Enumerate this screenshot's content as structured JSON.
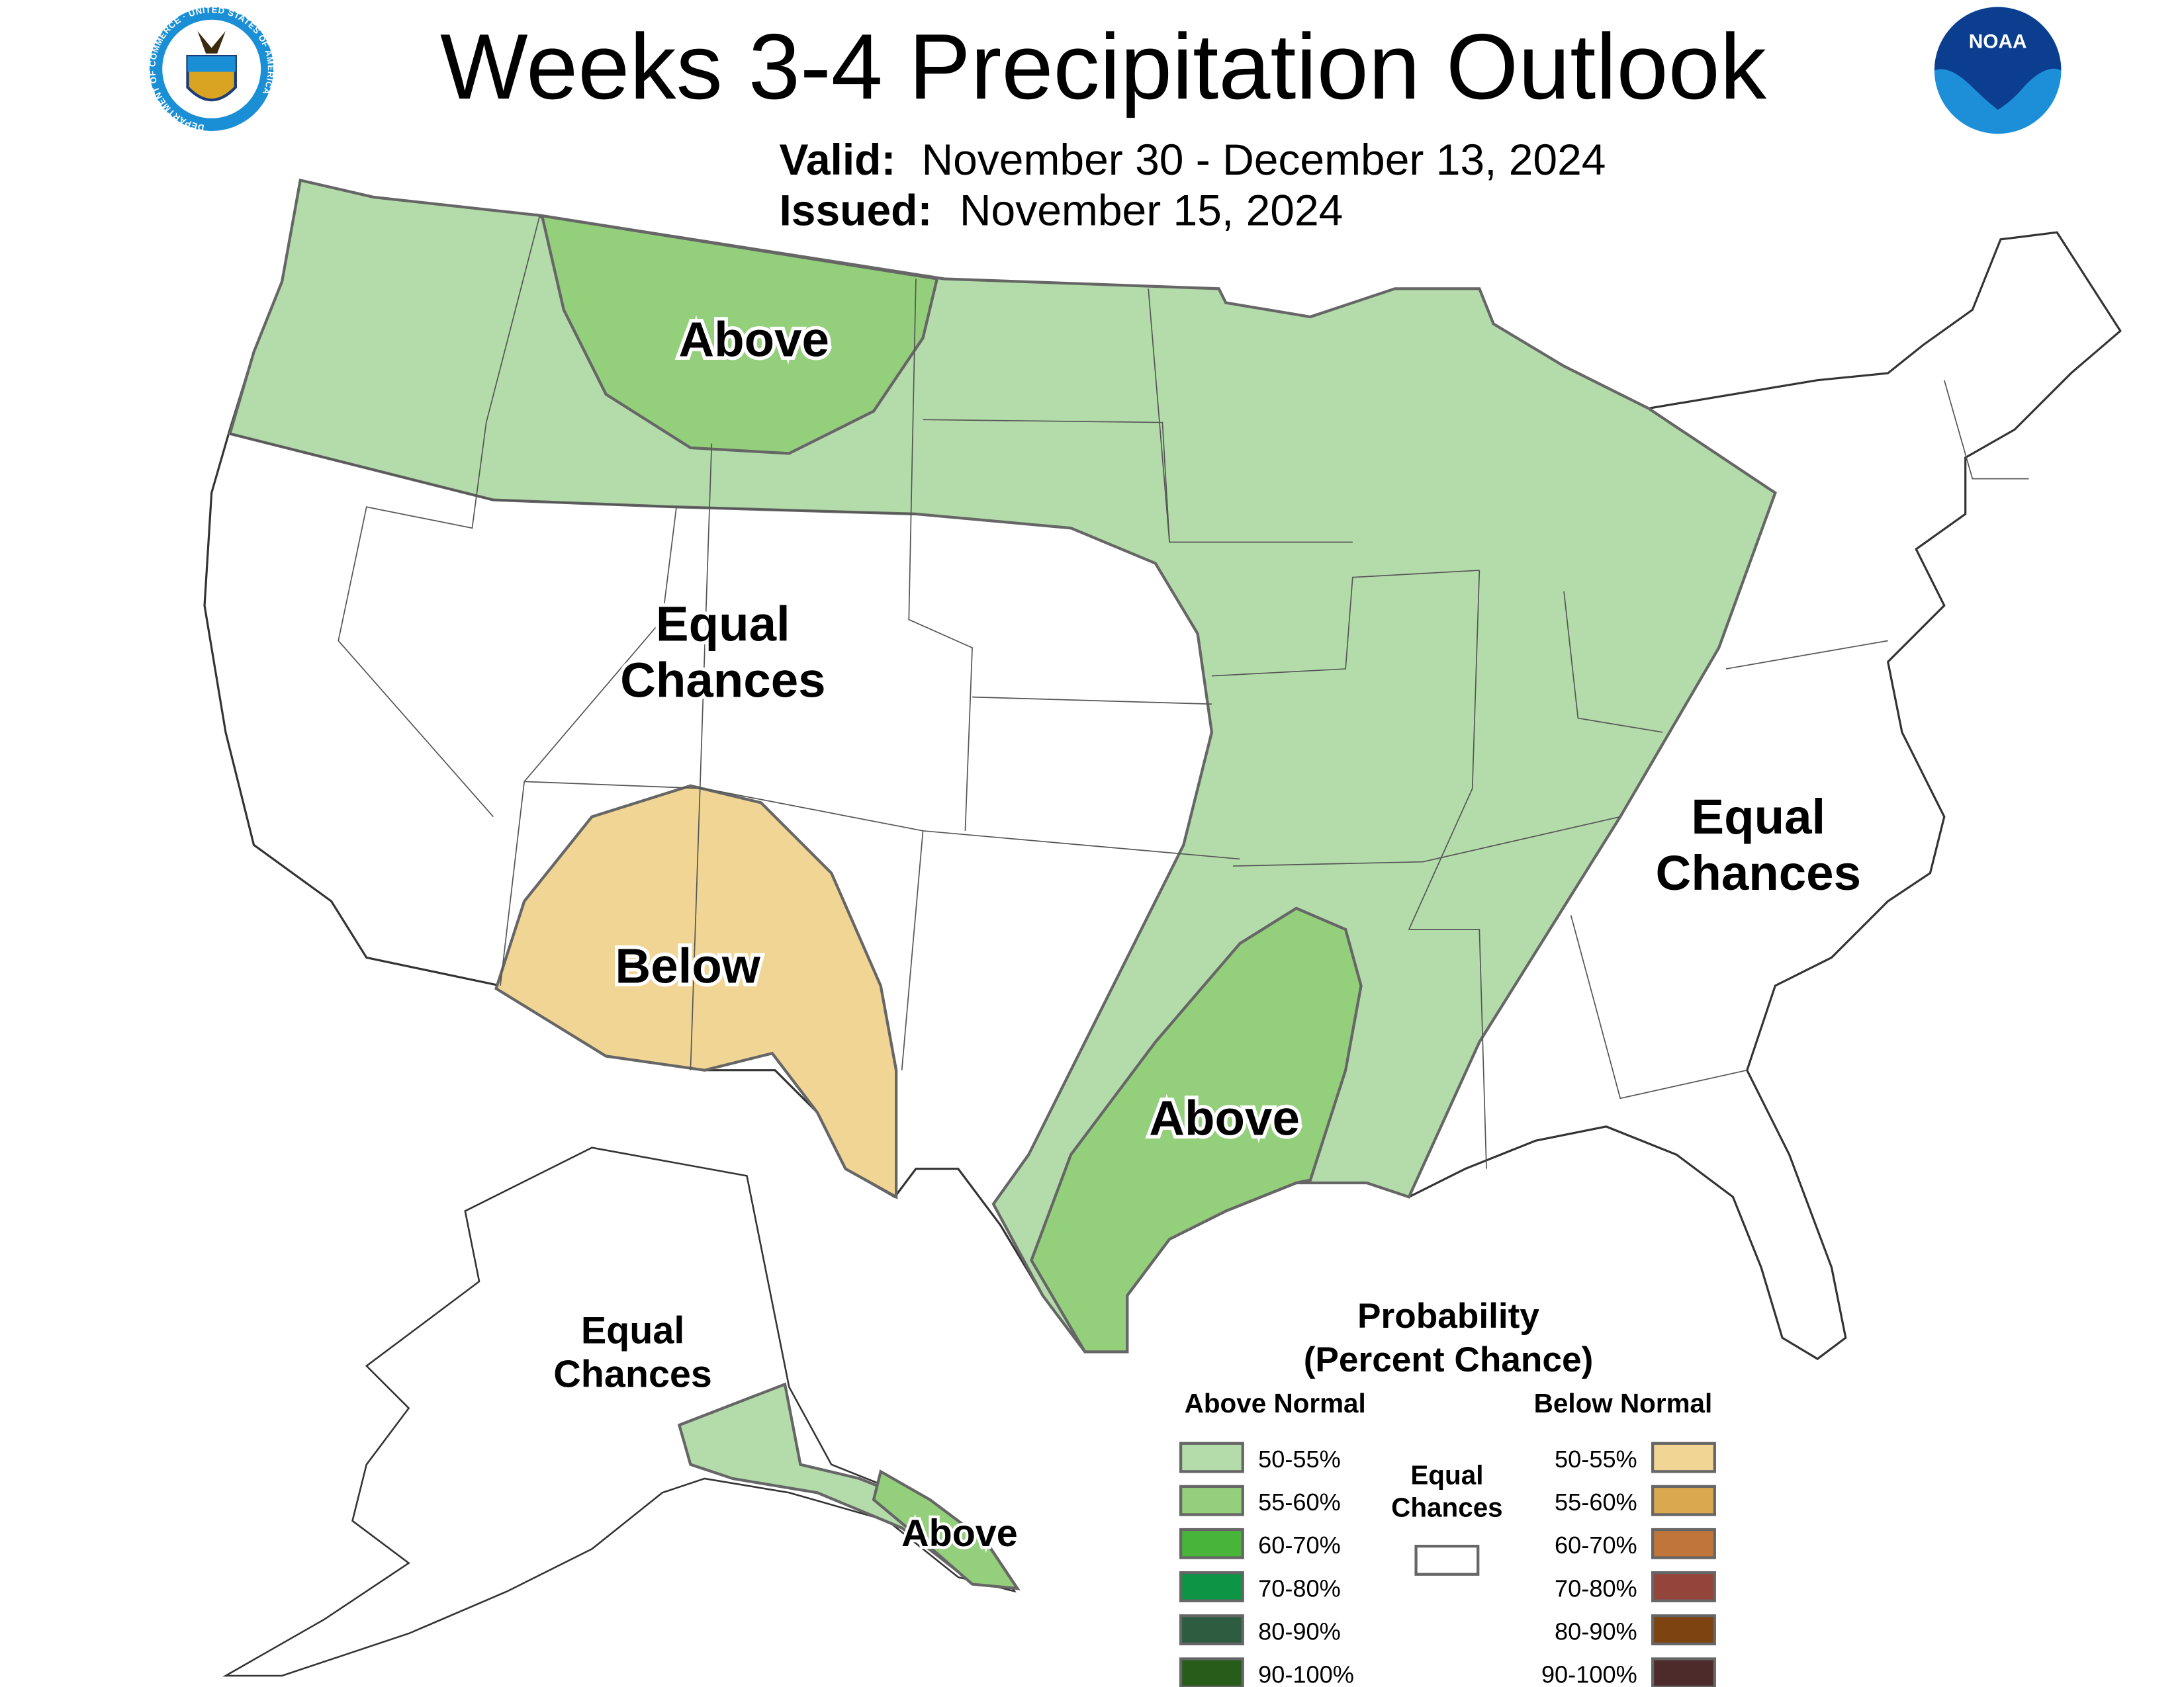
{
  "header": {
    "title": "Weeks 3-4 Precipitation Outlook",
    "valid_label": "Valid:",
    "valid_value": "November 30 - December 13, 2024",
    "issued_label": "Issued:",
    "issued_value": "November 15, 2024",
    "left_logo": "Department of Commerce seal",
    "left_logo_text": "DEPARTMENT OF COMMERCE · UNITED STATES OF AMERICA",
    "right_logo": "NOAA logo",
    "right_logo_text": "NOAA"
  },
  "map_labels": {
    "northwest": "Above",
    "west_line1": "Equal",
    "west_line2": "Chances",
    "southwest": "Below",
    "south_central": "Above",
    "east_line1": "Equal",
    "east_line2": "Chances",
    "alaska_line1": "Equal",
    "alaska_line2": "Chances",
    "alaska_southeast": "Above"
  },
  "legend": {
    "title_line1": "Probability",
    "title_line2": "(Percent Chance)",
    "above_header": "Above Normal",
    "below_header": "Below Normal",
    "equal_line1": "Equal",
    "equal_line2": "Chances",
    "above": [
      {
        "label": "50-55%",
        "color": "#b4dcab"
      },
      {
        "label": "55-60%",
        "color": "#94cf7c"
      },
      {
        "label": "60-70%",
        "color": "#48b43a"
      },
      {
        "label": "70-80%",
        "color": "#0e9445"
      },
      {
        "label": "80-90%",
        "color": "#2d5c40"
      },
      {
        "label": "90-100%",
        "color": "#275c1b"
      }
    ],
    "below": [
      {
        "label": "50-55%",
        "color": "#f0d595"
      },
      {
        "label": "55-60%",
        "color": "#d9a84f"
      },
      {
        "label": "60-70%",
        "color": "#c0763a"
      },
      {
        "label": "70-80%",
        "color": "#94453b"
      },
      {
        "label": "80-90%",
        "color": "#7d4311"
      },
      {
        "label": "90-100%",
        "color": "#4d2b2b"
      }
    ]
  }
}
